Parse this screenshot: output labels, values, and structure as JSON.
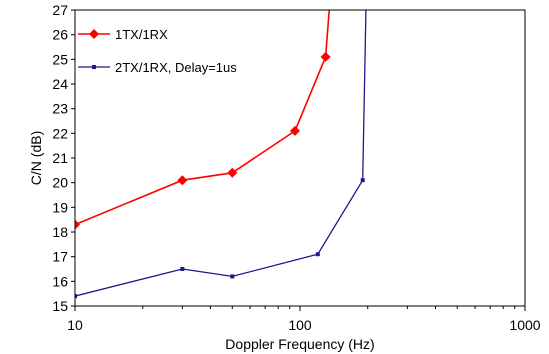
{
  "chart_data": {
    "type": "line",
    "xscale": "log",
    "xlim": [
      10,
      1000
    ],
    "ylim": [
      15,
      27
    ],
    "xticks": [
      "10",
      "100",
      "1000"
    ],
    "yticks": [
      "15",
      "16",
      "17",
      "18",
      "19",
      "20",
      "21",
      "22",
      "23",
      "24",
      "25",
      "26",
      "27"
    ],
    "xlabel": "Doppler Frequency (Hz)",
    "ylabel": "C/N (dB)",
    "grid": false,
    "legend_position": "top-left",
    "series": [
      {
        "name": "1TX/1RX",
        "color": "#ff0000",
        "marker": "diamond",
        "x": [
          10,
          30,
          50,
          95,
          130
        ],
        "y": [
          18.3,
          20.1,
          20.4,
          22.1,
          25.1
        ],
        "asymptote_x": 137
      },
      {
        "name": "2TX/1RX, Delay=1us",
        "color": "#1a1a8c",
        "marker": "square",
        "x": [
          10,
          30,
          50,
          120,
          190
        ],
        "y": [
          15.4,
          16.5,
          16.2,
          17.1,
          20.1
        ],
        "asymptote_x": 197
      }
    ]
  }
}
